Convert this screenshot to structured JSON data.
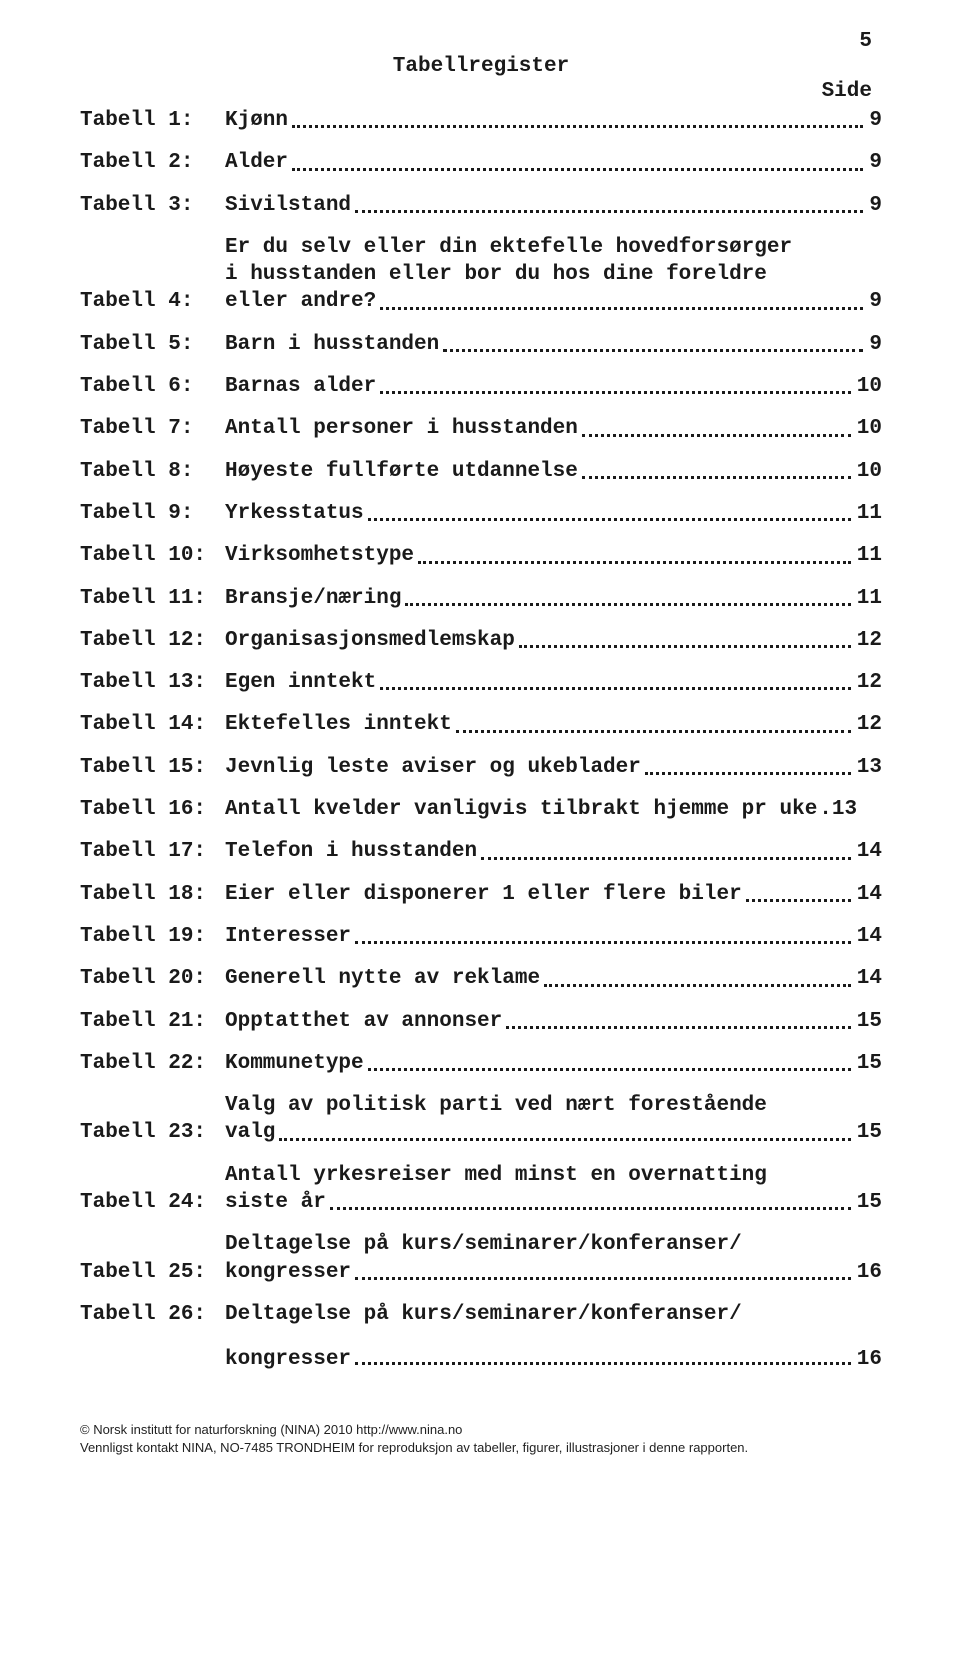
{
  "page_number": "5",
  "title": "Tabellregister",
  "side_label": "Side",
  "entries": [
    {
      "label": "Tabell 1:",
      "text": "Kjønn",
      "page": "9",
      "multiline": false
    },
    {
      "label": "Tabell 2:",
      "text": "Alder",
      "page": "9",
      "multiline": false
    },
    {
      "label": "Tabell 3:",
      "text": "Sivilstand",
      "page": "9",
      "multiline": false
    },
    {
      "label": "Tabell 4:",
      "text": "Er du selv eller din ektefelle hovedforsørger\ni husstanden eller bor du hos dine foreldre\neller andre?",
      "page": "9",
      "multiline": true
    },
    {
      "label": "Tabell 5:",
      "text": "Barn i husstanden",
      "page": "9",
      "multiline": false
    },
    {
      "label": "Tabell 6:",
      "text": "Barnas alder",
      "page": "10",
      "multiline": false
    },
    {
      "label": "Tabell 7:",
      "text": "Antall personer i husstanden",
      "page": "10",
      "multiline": false
    },
    {
      "label": "Tabell 8:",
      "text": "Høyeste fullførte utdannelse",
      "page": "10",
      "multiline": false
    },
    {
      "label": "Tabell 9:",
      "text": "Yrkesstatus",
      "page": "11",
      "multiline": false
    },
    {
      "label": "Tabell 10:",
      "text": "Virksomhetstype",
      "page": "11",
      "multiline": false
    },
    {
      "label": "Tabell 11:",
      "text": "Bransje/næring",
      "page": "11",
      "multiline": false
    },
    {
      "label": "Tabell 12:",
      "text": "Organisasjonsmedlemskap",
      "page": "12",
      "multiline": false
    },
    {
      "label": "Tabell 13:",
      "text": "Egen inntekt",
      "page": "12",
      "multiline": false
    },
    {
      "label": "Tabell 14:",
      "text": "Ektefelles inntekt",
      "page": "12",
      "multiline": false
    },
    {
      "label": "Tabell 15:",
      "text": "Jevnlig leste aviser og ukeblader",
      "page": "13",
      "multiline": false
    },
    {
      "label": "Tabell 16:",
      "text": "Antall kvelder vanligvis tilbrakt hjemme pr uke",
      "page": ".13",
      "multiline": false,
      "nodots": true
    },
    {
      "label": "Tabell 17:",
      "text": "Telefon i husstanden",
      "page": "14",
      "multiline": false
    },
    {
      "label": "Tabell 18:",
      "text": "Eier eller disponerer 1 eller flere biler",
      "page": "14",
      "multiline": false
    },
    {
      "label": "Tabell 19:",
      "text": "Interesser",
      "page": "14",
      "multiline": false
    },
    {
      "label": "Tabell 20:",
      "text": "Generell nytte av reklame",
      "page": "14",
      "multiline": false
    },
    {
      "label": "Tabell 21:",
      "text": "Opptatthet av annonser",
      "page": "15",
      "multiline": false
    },
    {
      "label": "Tabell 22:",
      "text": "Kommunetype",
      "page": "15",
      "multiline": false
    },
    {
      "label": "Tabell 23:",
      "text": "Valg av politisk parti ved nært forestående\nvalg",
      "page": "15",
      "multiline": true
    },
    {
      "label": "Tabell 24:",
      "text": "Antall yrkesreiser med minst en overnatting\nsiste år",
      "page": "15",
      "multiline": true
    },
    {
      "label": "Tabell 25:",
      "text": "Deltagelse på kurs/seminarer/konferanser/\nkongresser",
      "page": "16",
      "multiline": true
    },
    {
      "label": "Tabell 26:",
      "text": "Deltagelse på kurs/seminarer/konferanser/",
      "page": "",
      "multiline": false,
      "nodots": true,
      "nopage": true
    }
  ],
  "trailing_sub": {
    "text": "kongresser",
    "page": "16"
  },
  "footer_line1": "© Norsk institutt for naturforskning (NINA) 2010 http://www.nina.no",
  "footer_line2": "Vennligst kontakt NINA, NO-7485 TRONDHEIM for reproduksjon av tabeller, figurer, illustrasjoner i denne rapporten."
}
